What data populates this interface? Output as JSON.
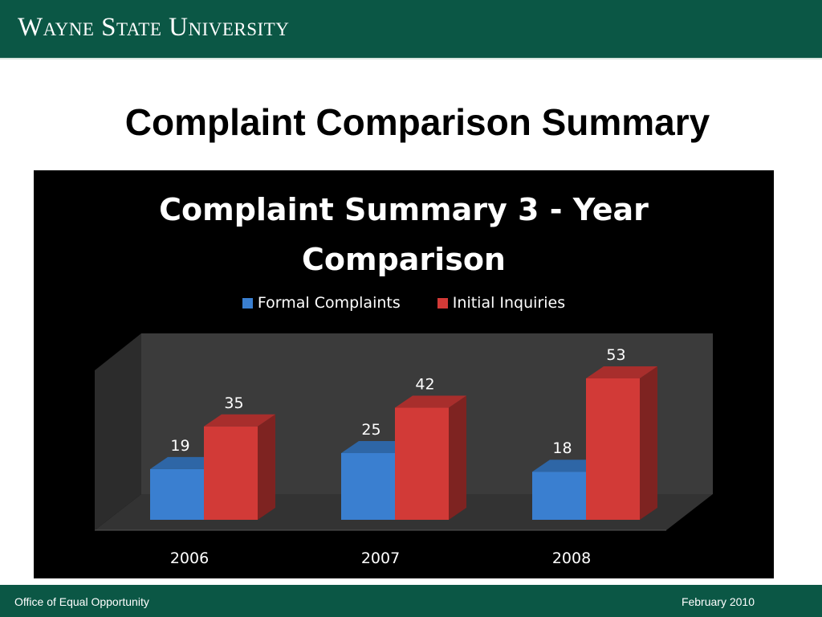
{
  "header": {
    "wordmark": "Wayne State University"
  },
  "slide": {
    "title": "Complaint Comparison Summary"
  },
  "chart_data": {
    "type": "bar",
    "title": "Complaint Summary 3 - Year Comparison",
    "categories": [
      "2006",
      "2007",
      "2008"
    ],
    "series": [
      {
        "name": "Formal Complaints",
        "values": [
          19,
          25,
          18
        ],
        "color": "#3a7fd0"
      },
      {
        "name": "Initial Inquiries",
        "values": [
          35,
          42,
          53
        ],
        "color": "#d23a37"
      }
    ],
    "data_labels": true,
    "style": "3d-clustered-column",
    "legend": "top",
    "grid": false,
    "xlabel": "",
    "ylabel": ""
  },
  "footer": {
    "left": "Office of Equal Opportunity",
    "right": "February 2010"
  }
}
